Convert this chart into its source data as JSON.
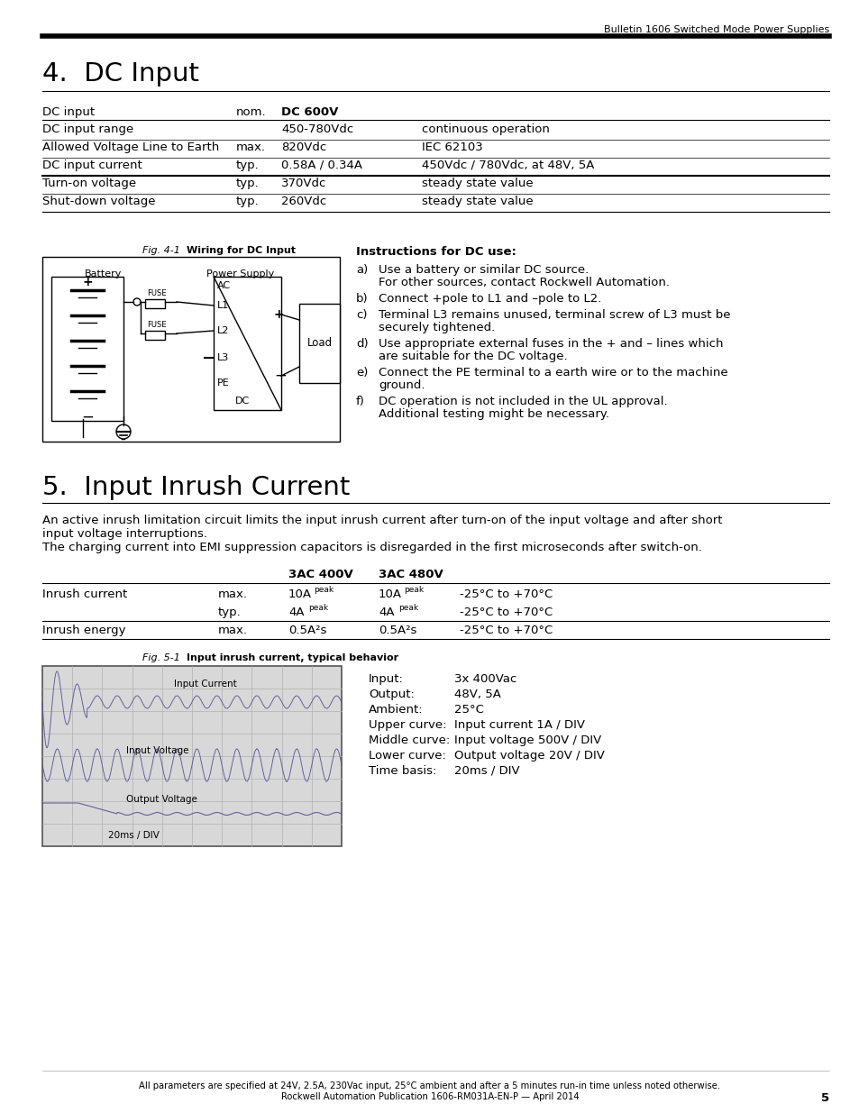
{
  "page_bg": "#ffffff",
  "header_text": "Bulletin 1606 Switched Mode Power Supplies",
  "section4_title": "4.  DC Input",
  "section5_title": "5.  Input Inrush Current",
  "dc_table_rows": [
    [
      "DC input range",
      "",
      "450-780Vdc",
      "continuous operation"
    ],
    [
      "Allowed Voltage Line to Earth",
      "max.",
      "820Vdc",
      "IEC 62103"
    ],
    [
      "DC input current",
      "typ.",
      "0.58A / 0.34A",
      "450Vdc / 780Vdc, at 48V, 5A"
    ],
    [
      "Turn-on voltage",
      "typ.",
      "370Vdc",
      "steady state value"
    ],
    [
      "Shut-down voltage",
      "typ.",
      "260Vdc",
      "steady state value"
    ]
  ],
  "instructions_title": "Instructions for DC use:",
  "instructions": [
    [
      "a)",
      "Use a battery or similar DC source.",
      "For other sources, contact Rockwell Automation."
    ],
    [
      "b)",
      "Connect +pole to L1 and –pole to L2.",
      ""
    ],
    [
      "c)",
      "Terminal L3 remains unused, terminal screw of L3 must be",
      "securely tightened."
    ],
    [
      "d)",
      "Use appropriate external fuses in the + and – lines which",
      "are suitable for the DC voltage."
    ],
    [
      "e)",
      "Connect the PE terminal to a earth wire or to the machine",
      "ground."
    ],
    [
      "f)",
      "DC operation is not included in the UL approval.",
      "Additional testing might be necessary."
    ]
  ],
  "inrush_desc1": "An active inrush limitation circuit limits the input inrush current after turn-on of the input voltage and after short",
  "inrush_desc1b": "input voltage interruptions.",
  "inrush_desc2": "The charging current into EMI suppression capacitors is disregarded in the first microseconds after switch-on.",
  "osc_info_lines": [
    [
      "Input:",
      "3x 400Vac"
    ],
    [
      "Output:",
      "48V, 5A"
    ],
    [
      "Ambient:",
      "25°C"
    ],
    [
      "Upper curve:",
      "Input current 1A / DIV"
    ],
    [
      "Middle curve:",
      "Input voltage 500V / DIV"
    ],
    [
      "Lower curve:",
      "Output voltage 20V / DIV"
    ],
    [
      "Time basis:",
      "20ms / DIV"
    ]
  ],
  "footer_text1": "All parameters are specified at 24V, 2.5A, 230Vac input, 25°C ambient and after a 5 minutes run-in time unless noted otherwise.",
  "footer_text2": "Rockwell Automation Publication 1606-RM031A-EN-P — April 2014",
  "footer_page": "5"
}
